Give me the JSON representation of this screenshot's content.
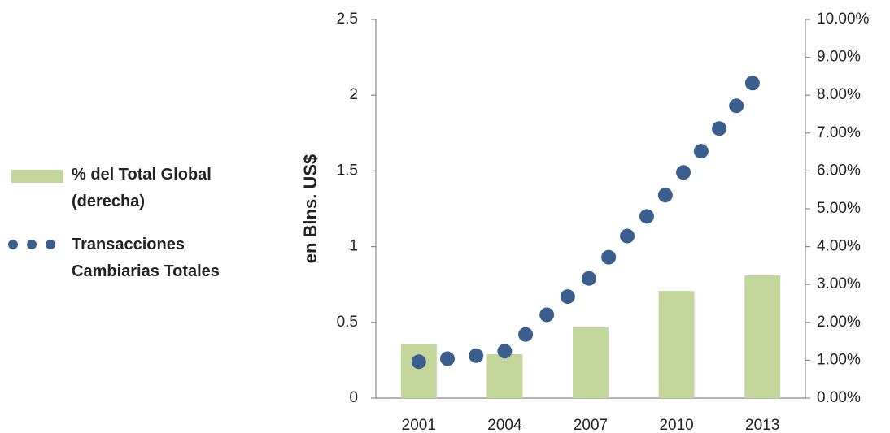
{
  "chart_data": {
    "type": "combo",
    "y_label": "en Blns. US$",
    "xlim": [
      1999.5,
      2014.5
    ],
    "xticks": [
      2001,
      2004,
      2007,
      2010,
      2013
    ],
    "ylim": [
      0,
      2.5
    ],
    "yticks": [
      0,
      0.5,
      1,
      1.5,
      2,
      2.5
    ],
    "y2lim": [
      0,
      10
    ],
    "y2ticks": [
      {
        "value": 0,
        "label": "0.00%"
      },
      {
        "value": 1,
        "label": "1.00%"
      },
      {
        "value": 2,
        "label": "2.00%"
      },
      {
        "value": 3,
        "label": "3.00%"
      },
      {
        "value": 4,
        "label": "4.00%"
      },
      {
        "value": 5,
        "label": "5.00%"
      },
      {
        "value": 6,
        "label": "6.00%"
      },
      {
        "value": 7,
        "label": "7.00%"
      },
      {
        "value": 8,
        "label": "8.00%"
      },
      {
        "value": 9,
        "label": "9.00%"
      },
      {
        "value": 10,
        "label": "10.00%"
      }
    ],
    "legend": "left",
    "series": [
      {
        "name": "% del Total Global (derecha)",
        "type": "bar",
        "axis": "y2",
        "color": "#c3d69b",
        "x": [
          2001,
          2004,
          2007,
          2010,
          2013
        ],
        "values": [
          1.42,
          1.16,
          1.87,
          2.83,
          3.24
        ]
      },
      {
        "name": "Transacciones Cambiarias Totales",
        "type": "scatter",
        "color": "#3a5f8f",
        "x": [
          2001.0,
          2002.0,
          2003.0,
          2004.0,
          2004.73,
          2005.47,
          2006.2,
          2006.94,
          2007.63,
          2008.28,
          2008.96,
          2009.61,
          2010.24,
          2010.86,
          2011.49,
          2012.09,
          2012.65
        ],
        "values": [
          0.24,
          0.26,
          0.28,
          0.31,
          0.42,
          0.55,
          0.67,
          0.79,
          0.93,
          1.07,
          1.2,
          1.34,
          1.49,
          1.63,
          1.78,
          1.93,
          2.08
        ]
      }
    ]
  }
}
